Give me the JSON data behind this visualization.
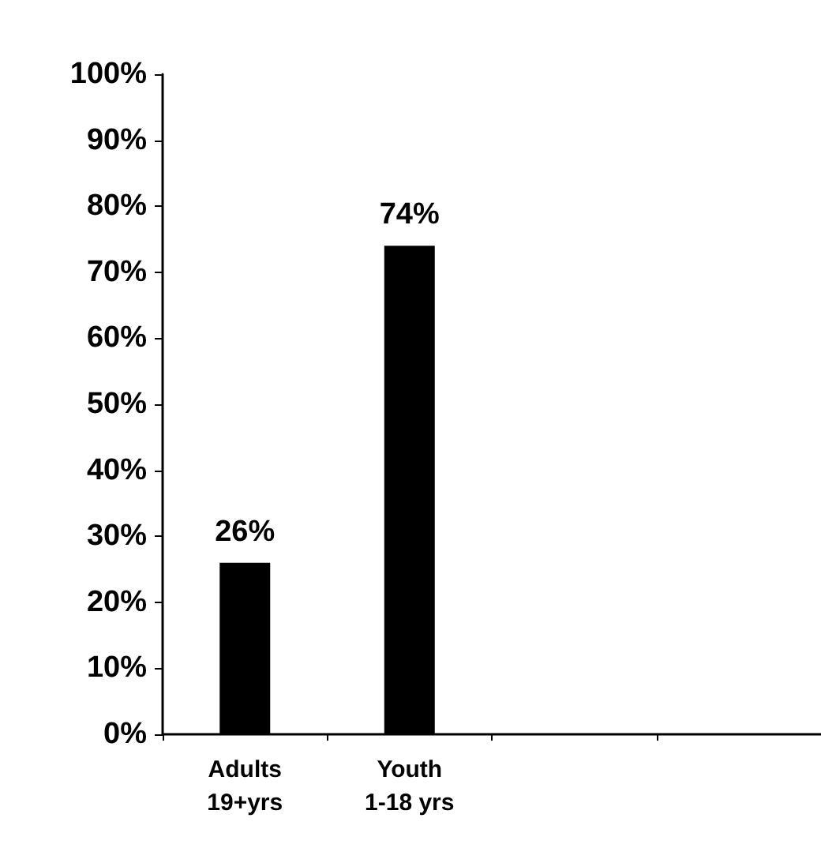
{
  "chart_data": {
    "type": "bar",
    "categories": [
      "Adults\n19+yrs",
      "Youth\n1-18 yrs",
      null,
      null
    ],
    "values": [
      26,
      74,
      null,
      null
    ],
    "color": "#000000",
    "value_labels": [
      "26%",
      "74%",
      null,
      null
    ],
    "ylim": [
      0,
      100
    ],
    "yticks": [
      {
        "value": 0,
        "label": "0%"
      },
      {
        "value": 10,
        "label": "10%"
      },
      {
        "value": 20,
        "label": "20%"
      },
      {
        "value": 30,
        "label": "30%"
      },
      {
        "value": 40,
        "label": "40%"
      },
      {
        "value": 50,
        "label": "50%"
      },
      {
        "value": 60,
        "label": "60%"
      },
      {
        "value": 70,
        "label": "70%"
      },
      {
        "value": 80,
        "label": "80%"
      },
      {
        "value": 90,
        "label": "90%"
      },
      {
        "value": 100,
        "label": "100%"
      }
    ],
    "grid": false
  }
}
